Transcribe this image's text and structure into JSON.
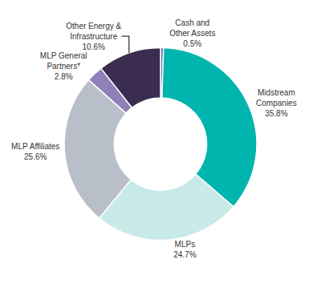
{
  "chart_data": {
    "type": "donut",
    "categories": [
      "Cash and\nOther Assets",
      "Midstream\nCompanies",
      "MLPs",
      "MLP Affiliates",
      "MLP General\nPartners*",
      "Other Energy &\nInfrastructure"
    ],
    "values": [
      0.5,
      35.8,
      24.7,
      25.6,
      2.8,
      10.6
    ],
    "value_labels": [
      "0.5%",
      "35.8%",
      "24.7%",
      "25.6%",
      "2.8%",
      "10.6%"
    ],
    "data_labels": true,
    "colors": [
      "#5B6EAE",
      "#00B5AD",
      "#C8EAE8",
      "#B8BFC8",
      "#9080B8",
      "#3A2D50"
    ]
  }
}
